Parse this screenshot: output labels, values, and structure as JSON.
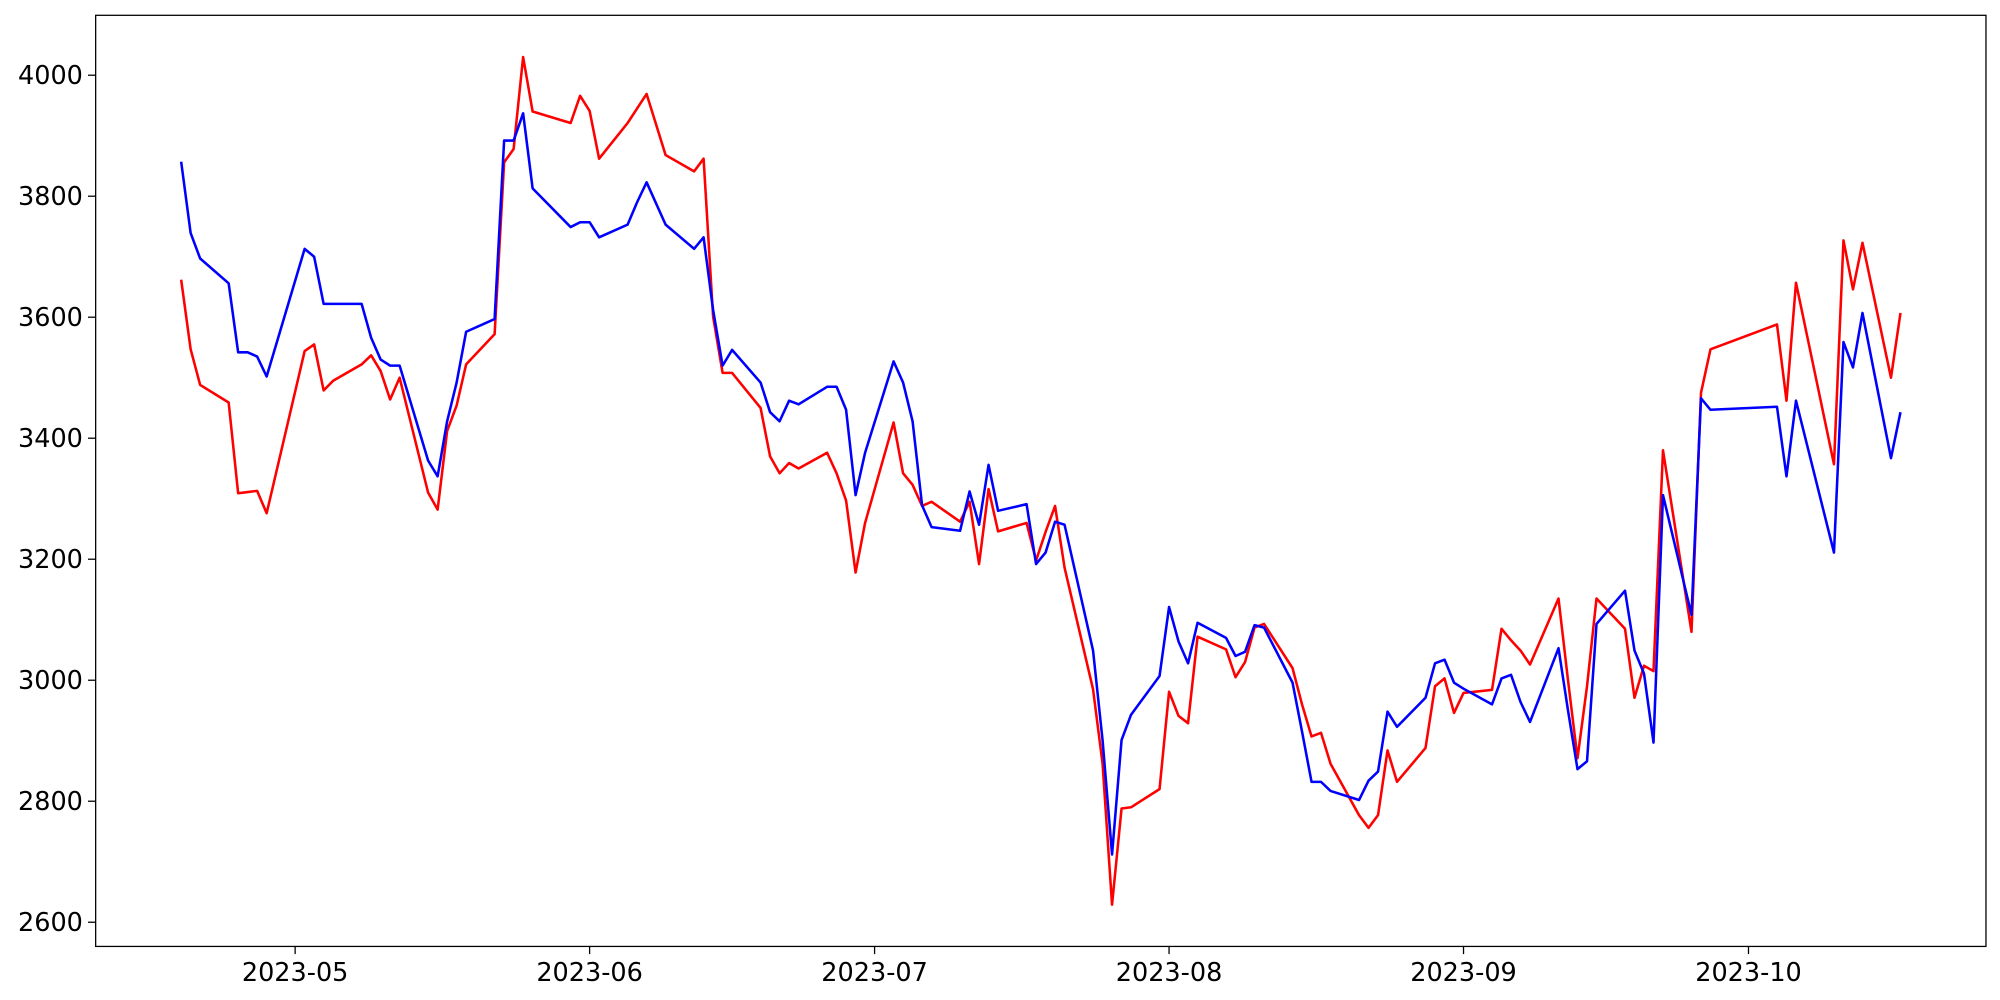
{
  "chart_data": {
    "type": "line",
    "x": [
      "2023-04-19",
      "2023-04-20",
      "2023-04-21",
      "2023-04-24",
      "2023-04-25",
      "2023-04-26",
      "2023-04-27",
      "2023-04-28",
      "2023-05-02",
      "2023-05-03",
      "2023-05-04",
      "2023-05-05",
      "2023-05-08",
      "2023-05-09",
      "2023-05-10",
      "2023-05-11",
      "2023-05-12",
      "2023-05-15",
      "2023-05-16",
      "2023-05-17",
      "2023-05-18",
      "2023-05-19",
      "2023-05-22",
      "2023-05-23",
      "2023-05-24",
      "2023-05-25",
      "2023-05-26",
      "2023-05-30",
      "2023-05-31",
      "2023-06-01",
      "2023-06-02",
      "2023-06-05",
      "2023-06-06",
      "2023-06-07",
      "2023-06-09",
      "2023-06-12",
      "2023-06-13",
      "2023-06-14",
      "2023-06-15",
      "2023-06-16",
      "2023-06-19",
      "2023-06-20",
      "2023-06-21",
      "2023-06-22",
      "2023-06-23",
      "2023-06-26",
      "2023-06-27",
      "2023-06-28",
      "2023-06-29",
      "2023-06-30",
      "2023-07-03",
      "2023-07-04",
      "2023-07-05",
      "2023-07-06",
      "2023-07-07",
      "2023-07-10",
      "2023-07-11",
      "2023-07-12",
      "2023-07-13",
      "2023-07-14",
      "2023-07-17",
      "2023-07-18",
      "2023-07-19",
      "2023-07-20",
      "2023-07-21",
      "2023-07-24",
      "2023-07-25",
      "2023-07-26",
      "2023-07-27",
      "2023-07-28",
      "2023-07-31",
      "2023-08-01",
      "2023-08-02",
      "2023-08-03",
      "2023-08-04",
      "2023-08-07",
      "2023-08-08",
      "2023-08-09",
      "2023-08-10",
      "2023-08-11",
      "2023-08-14",
      "2023-08-15",
      "2023-08-16",
      "2023-08-17",
      "2023-08-18",
      "2023-08-21",
      "2023-08-22",
      "2023-08-23",
      "2023-08-24",
      "2023-08-25",
      "2023-08-28",
      "2023-08-29",
      "2023-08-30",
      "2023-08-31",
      "2023-09-01",
      "2023-09-04",
      "2023-09-05",
      "2023-09-06",
      "2023-09-07",
      "2023-09-08",
      "2023-09-11",
      "2023-09-12",
      "2023-09-13",
      "2023-09-14",
      "2023-09-15",
      "2023-09-18",
      "2023-09-19",
      "2023-09-20",
      "2023-09-21",
      "2023-09-22",
      "2023-09-25",
      "2023-09-26",
      "2023-09-27",
      "2023-10-04",
      "2023-10-05",
      "2023-10-06",
      "2023-10-10",
      "2023-10-11",
      "2023-10-12",
      "2023-10-13",
      "2023-10-16",
      "2023-10-17"
    ],
    "series": [
      {
        "color": "red",
        "values": [
          3662,
          3547,
          3488,
          3459,
          3309,
          3311,
          3313,
          3276,
          3544,
          3555,
          3479,
          3495,
          3522,
          3537,
          3511,
          3464,
          3500,
          3310,
          3282,
          3412,
          3454,
          3522,
          3572,
          3856,
          3878,
          4030,
          3940,
          3921,
          3966,
          3941,
          3862,
          3921,
          3945,
          3969,
          3868,
          3841,
          3862,
          3601,
          3508,
          3508,
          3450,
          3370,
          3342,
          3359,
          3350,
          3376,
          3342,
          3297,
          3178,
          3260,
          3426,
          3342,
          3323,
          3288,
          3295,
          3262,
          3295,
          3192,
          3316,
          3246,
          3260,
          3198,
          3245,
          3288,
          3186,
          2985,
          2862,
          2629,
          2788,
          2790,
          2820,
          2981,
          2941,
          2929,
          3072,
          3051,
          3005,
          3030,
          3087,
          3093,
          3020,
          2960,
          2907,
          2913,
          2862,
          2777,
          2756,
          2777,
          2884,
          2832,
          2888,
          2990,
          3003,
          2946,
          2979,
          2984,
          3085,
          3066,
          3049,
          3026,
          3135,
          3000,
          2871,
          2990,
          3135,
          3085,
          2971,
          3024,
          3015,
          3380,
          3080,
          3475,
          3547,
          3588,
          3462,
          3657,
          3357,
          3727,
          3646,
          3723,
          3500,
          3607
        ]
      },
      {
        "color": "blue",
        "values": [
          3857,
          3739,
          3697,
          3656,
          3542,
          3542,
          3535,
          3502,
          3713,
          3700,
          3622,
          3622,
          3622,
          3566,
          3530,
          3520,
          3520,
          3363,
          3337,
          3428,
          3492,
          3576,
          3597,
          3892,
          3892,
          3937,
          3813,
          3749,
          3757,
          3757,
          3732,
          3753,
          3790,
          3823,
          3753,
          3713,
          3732,
          3612,
          3520,
          3546,
          3492,
          3443,
          3428,
          3462,
          3456,
          3485,
          3485,
          3447,
          3306,
          3376,
          3527,
          3492,
          3428,
          3289,
          3253,
          3247,
          3312,
          3257,
          3356,
          3280,
          3291,
          3192,
          3211,
          3262,
          3257,
          3049,
          2901,
          2712,
          2901,
          2943,
          3007,
          3121,
          3064,
          3028,
          3095,
          3070,
          3040,
          3047,
          3091,
          3087,
          2996,
          2915,
          2832,
          2832,
          2817,
          2802,
          2834,
          2849,
          2948,
          2923,
          2971,
          3028,
          3034,
          2996,
          2986,
          2960,
          3003,
          3009,
          2964,
          2931,
          3053,
          2950,
          2853,
          2866,
          3093,
          3148,
          3049,
          3011,
          2897,
          3306,
          3108,
          3466,
          3447,
          3452,
          3337,
          3462,
          3211,
          3559,
          3517,
          3607,
          3367,
          3443
        ]
      }
    ],
    "xlim": [
      "2023-04-10",
      "2023-10-26"
    ],
    "xticks": [
      "2023-05",
      "2023-06",
      "2023-07",
      "2023-08",
      "2023-09",
      "2023-10"
    ],
    "ylim": [
      2560,
      4099
    ],
    "yticks": [
      2600,
      2800,
      3000,
      3200,
      3400,
      3600,
      3800,
      4000
    ],
    "grid": false
  }
}
